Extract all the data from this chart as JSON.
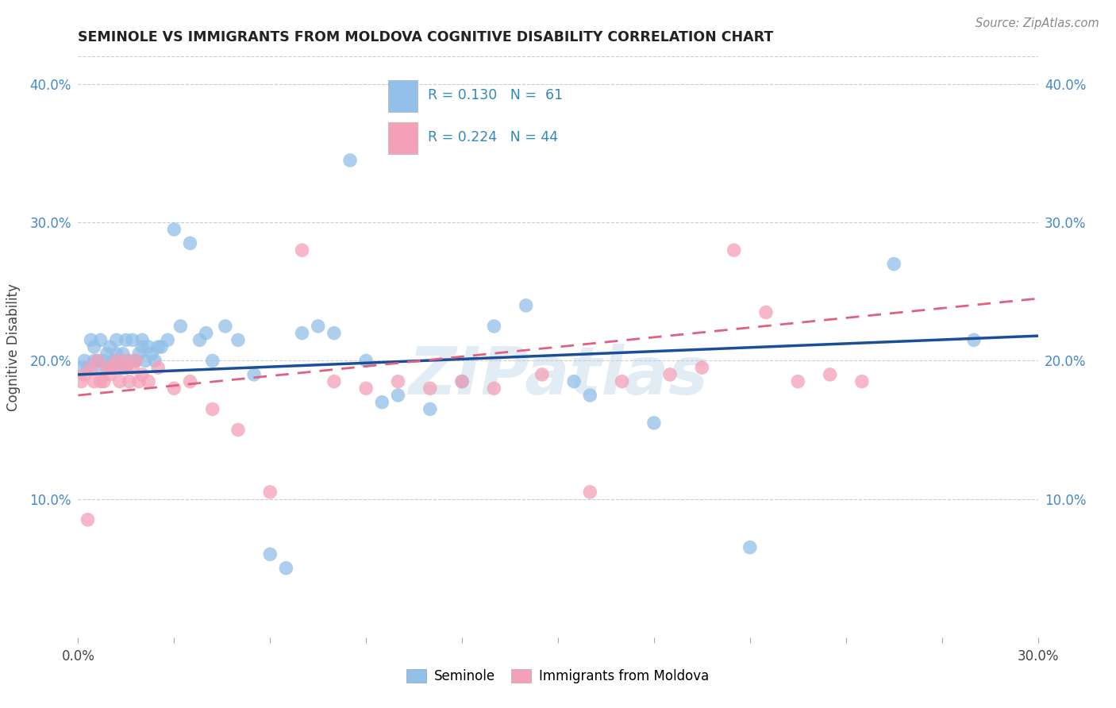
{
  "title": "SEMINOLE VS IMMIGRANTS FROM MOLDOVA COGNITIVE DISABILITY CORRELATION CHART",
  "source": "Source: ZipAtlas.com",
  "ylabel": "Cognitive Disability",
  "xlim": [
    0.0,
    0.3
  ],
  "ylim": [
    0.0,
    0.42
  ],
  "xtick_show": [
    0.0,
    0.3
  ],
  "yticks_vals": [
    0.1,
    0.2,
    0.3,
    0.4
  ],
  "legend_line1": "R = 0.130  N =  61",
  "legend_line2": "R = 0.224  N = 44",
  "color_seminole": "#92C0E8",
  "color_moldova": "#F4A0B8",
  "color_line_seminole": "#1A4E96",
  "color_line_moldova": "#E06080",
  "watermark": "ZIPatlas",
  "seminole_x": [
    0.001,
    0.002,
    0.003,
    0.004,
    0.005,
    0.005,
    0.006,
    0.007,
    0.007,
    0.008,
    0.009,
    0.01,
    0.01,
    0.011,
    0.012,
    0.012,
    0.013,
    0.014,
    0.015,
    0.015,
    0.016,
    0.017,
    0.018,
    0.019,
    0.02,
    0.02,
    0.021,
    0.022,
    0.023,
    0.024,
    0.025,
    0.026,
    0.028,
    0.03,
    0.032,
    0.035,
    0.038,
    0.04,
    0.042,
    0.046,
    0.05,
    0.055,
    0.06,
    0.065,
    0.07,
    0.075,
    0.08,
    0.085,
    0.09,
    0.095,
    0.1,
    0.11,
    0.12,
    0.13,
    0.14,
    0.155,
    0.16,
    0.18,
    0.21,
    0.255,
    0.28
  ],
  "seminole_y": [
    0.195,
    0.2,
    0.195,
    0.215,
    0.2,
    0.21,
    0.2,
    0.195,
    0.215,
    0.2,
    0.205,
    0.195,
    0.21,
    0.2,
    0.205,
    0.215,
    0.195,
    0.205,
    0.195,
    0.215,
    0.2,
    0.215,
    0.2,
    0.205,
    0.21,
    0.215,
    0.2,
    0.21,
    0.205,
    0.2,
    0.21,
    0.21,
    0.215,
    0.295,
    0.225,
    0.285,
    0.215,
    0.22,
    0.2,
    0.225,
    0.215,
    0.19,
    0.06,
    0.05,
    0.22,
    0.225,
    0.22,
    0.345,
    0.2,
    0.17,
    0.175,
    0.165,
    0.185,
    0.225,
    0.24,
    0.185,
    0.175,
    0.155,
    0.065,
    0.27,
    0.215
  ],
  "moldova_x": [
    0.001,
    0.002,
    0.003,
    0.004,
    0.005,
    0.006,
    0.007,
    0.008,
    0.009,
    0.01,
    0.011,
    0.012,
    0.013,
    0.014,
    0.015,
    0.016,
    0.017,
    0.018,
    0.019,
    0.02,
    0.022,
    0.025,
    0.03,
    0.035,
    0.042,
    0.05,
    0.06,
    0.07,
    0.08,
    0.09,
    0.1,
    0.11,
    0.12,
    0.13,
    0.145,
    0.16,
    0.17,
    0.185,
    0.195,
    0.205,
    0.215,
    0.225,
    0.235,
    0.245
  ],
  "moldova_y": [
    0.185,
    0.19,
    0.085,
    0.195,
    0.185,
    0.2,
    0.185,
    0.185,
    0.195,
    0.19,
    0.195,
    0.2,
    0.185,
    0.195,
    0.2,
    0.185,
    0.195,
    0.2,
    0.185,
    0.19,
    0.185,
    0.195,
    0.18,
    0.185,
    0.165,
    0.15,
    0.105,
    0.28,
    0.185,
    0.18,
    0.185,
    0.18,
    0.185,
    0.18,
    0.19,
    0.105,
    0.185,
    0.19,
    0.195,
    0.28,
    0.235,
    0.185,
    0.19,
    0.185
  ]
}
